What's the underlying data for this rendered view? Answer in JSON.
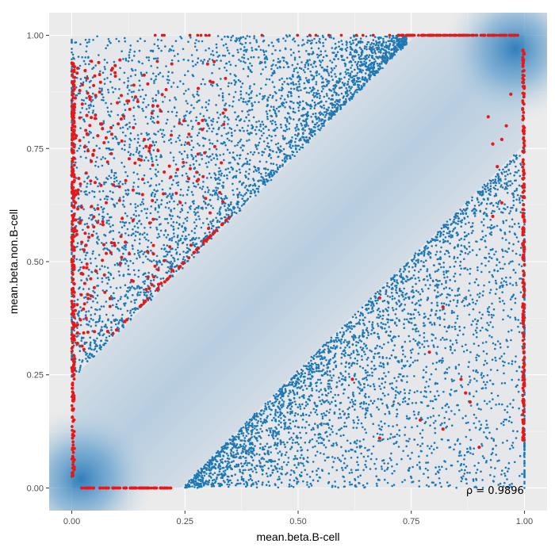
{
  "chart_data": {
    "type": "scatter",
    "title": "",
    "xlabel": "mean.beta.B-cell",
    "ylabel": "mean.beta.non.B-cell",
    "xlim": [
      -0.05,
      1.05
    ],
    "ylim": [
      -0.05,
      1.05
    ],
    "x_ticks": [
      0.0,
      0.25,
      0.5,
      0.75,
      1.0
    ],
    "x_tick_labels": [
      "0.00",
      "0.25",
      "0.50",
      "0.75",
      "1.00"
    ],
    "y_ticks": [
      0.0,
      0.25,
      0.5,
      0.75,
      1.0
    ],
    "y_tick_labels": [
      "0.00",
      "0.25",
      "0.50",
      "0.75",
      "1.00"
    ],
    "grid": true,
    "legend": "none",
    "annotation": "ρ = 0.9896",
    "annotation_position": [
      0.935,
      -0.01
    ],
    "background_density": "2D density fill (blue), dense along the diagonal and at corners (0,0) and (1,1)",
    "series": [
      {
        "name": "",
        "color": "#1f78b4",
        "description": "many points in two bands: upper-left region above diagonal offset ~+0.25 and lower-right region below diagonal offset ~-0.25",
        "regions": [
          {
            "x_range": [
              0.0,
              0.72
            ],
            "y_min_offset": 0.24,
            "y_max": 1.0
          },
          {
            "x_range": [
              0.25,
              1.0
            ],
            "y_max_offset": -0.24,
            "y_min": 0.0
          }
        ]
      },
      {
        "name": "",
        "color": "#e31a1c",
        "description": "highlighted points concentrated along x≈0, y≈0, x≈1 and y≈1 borders, plus scattered points in the upper-left region"
      }
    ]
  },
  "colors": {
    "panel_background": "#ebebeb",
    "grid": "#ffffff",
    "density_low": "#e5e7ea",
    "density_high": "#2b7bba",
    "blue_points": "#1f78b4",
    "red_points": "#e31a1c"
  }
}
